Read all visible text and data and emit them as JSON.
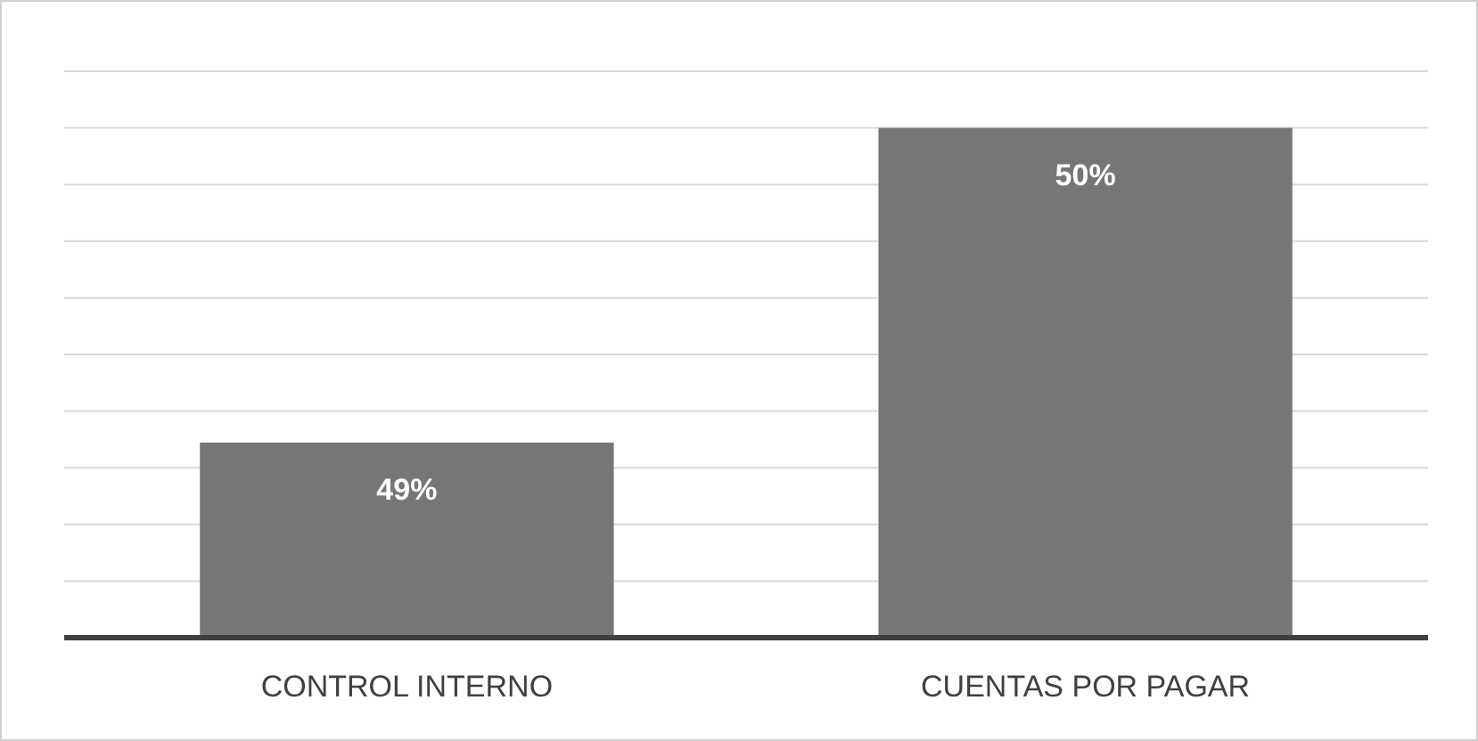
{
  "chart_data": {
    "type": "bar",
    "categories": [
      "CONTROL INTERNO",
      "CUENTAS POR PAGAR"
    ],
    "values": [
      49,
      50
    ],
    "color": "#767676",
    "data_labels": true,
    "value_labels": [
      "49%",
      "50%"
    ],
    "ylim": [
      48.38,
      50.18
    ],
    "yticks": [
      {
        "value": 48.38,
        "label": null
      },
      {
        "value": 48.56,
        "label": null
      },
      {
        "value": 48.74,
        "label": null
      },
      {
        "value": 48.92,
        "label": null
      },
      {
        "value": 49.1,
        "label": null
      },
      {
        "value": 49.28,
        "label": null
      },
      {
        "value": 49.46,
        "label": null
      },
      {
        "value": 49.64,
        "label": null
      },
      {
        "value": 49.82,
        "label": null
      },
      {
        "value": 50.0,
        "label": null
      },
      {
        "value": 50.18,
        "label": null
      }
    ],
    "grid": "y",
    "tick_labels": "x"
  }
}
